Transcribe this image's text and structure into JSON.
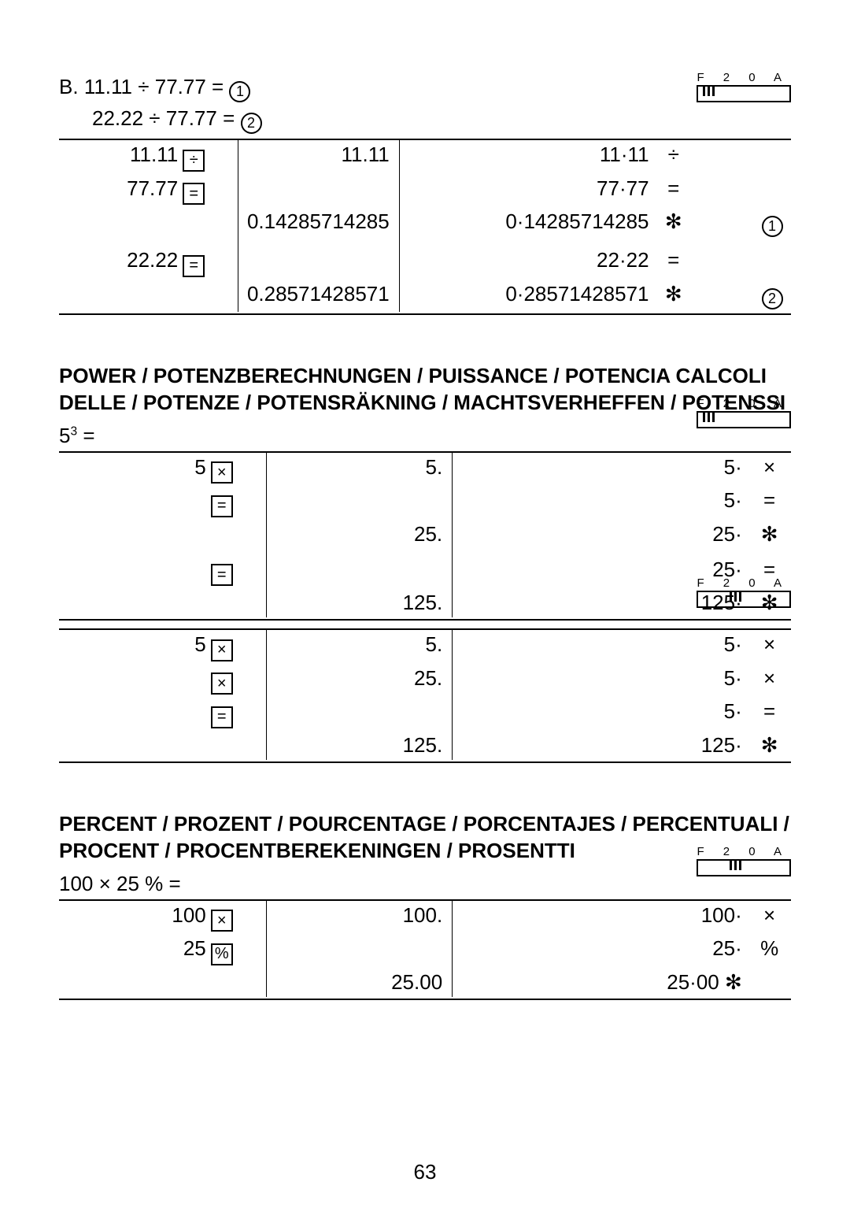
{
  "switch": {
    "labels": "F  2  0  A"
  },
  "sectionB": {
    "label_prefix": "B.",
    "expr1_lhs": "11.11 ÷ 77.77 =",
    "expr2_lhs": "22.22 ÷ 77.77 =",
    "rows": [
      {
        "c1_num": "11.11",
        "c1_key": "÷",
        "c2": "11.11",
        "c3": "11·11",
        "c3op": "÷",
        "c4": ""
      },
      {
        "c1_num": "77.77",
        "c1_key": "=",
        "c2": "",
        "c3": "77·77",
        "c3op": "=",
        "c4": ""
      },
      {
        "c1_num": "",
        "c1_key": "",
        "c2": "0.14285714285",
        "c3": "0·14285714285",
        "c3op": "✻",
        "c4": "①"
      },
      {
        "gap": true
      },
      {
        "c1_num": "22.22",
        "c1_key": "=",
        "c2": "",
        "c3": "22·22",
        "c3op": "=",
        "c4": ""
      },
      {
        "c1_num": "",
        "c1_key": "",
        "c2": "0.28571428571",
        "c3": "0·28571428571",
        "c3op": "✻",
        "c4": "②"
      }
    ]
  },
  "power": {
    "title": "POWER / POTENZBERECHNUNGEN / PUISSANCE / POTENCIA CALCOLI DELLE / POTENZE / POTENSRÄKNING / MACHTSVERHEFFEN / POTENSSI",
    "expr": "5³ =",
    "rowsA": [
      {
        "c1_num": "5",
        "c1_key": "×",
        "c2": "5.",
        "c3": "5·",
        "c3op": "×"
      },
      {
        "c1_num": "",
        "c1_key": "=",
        "c2": "",
        "c3": "5·",
        "c3op": "="
      },
      {
        "c1_num": "",
        "c1_key": "",
        "c2": "25.",
        "c3": "25·",
        "c3op": "✻"
      },
      {
        "gap": true
      },
      {
        "c1_num": "",
        "c1_key": "=",
        "c2": "",
        "c3": "25·",
        "c3op": "="
      },
      {
        "c1_num": "",
        "c1_key": "",
        "c2": "125.",
        "c3": "125·",
        "c3op": "✻"
      }
    ],
    "rowsB": [
      {
        "c1_num": "5",
        "c1_key": "×",
        "c2": "5.",
        "c3": "5·",
        "c3op": "×"
      },
      {
        "c1_num": "",
        "c1_key": "×",
        "c2": "25.",
        "c3": "5·",
        "c3op": "×"
      },
      {
        "c1_num": "",
        "c1_key": "=",
        "c2": "",
        "c3": "5·",
        "c3op": "="
      },
      {
        "c1_num": "",
        "c1_key": "",
        "c2": "125.",
        "c3": "125·",
        "c3op": "✻"
      }
    ]
  },
  "percent": {
    "title": "PERCENT / PROZENT / POURCENTAGE / PORCENTAJES / PERCENTUALI / PROCENT / PROCENTBEREKENINGEN / PROSENTTI",
    "expr": "100 × 25 % =",
    "rows": [
      {
        "c1_num": "100",
        "c1_key": "×",
        "c2": "100.",
        "c3": "100·",
        "c3op": "×"
      },
      {
        "c1_num": "25",
        "c1_key": "%",
        "c2": "",
        "c3": "25·",
        "c3op": "%"
      },
      {
        "c1_num": "",
        "c1_key": "",
        "c2": "25.00",
        "c3": "25·00 ✻",
        "c3op": ""
      }
    ]
  },
  "pageNumber": "63"
}
